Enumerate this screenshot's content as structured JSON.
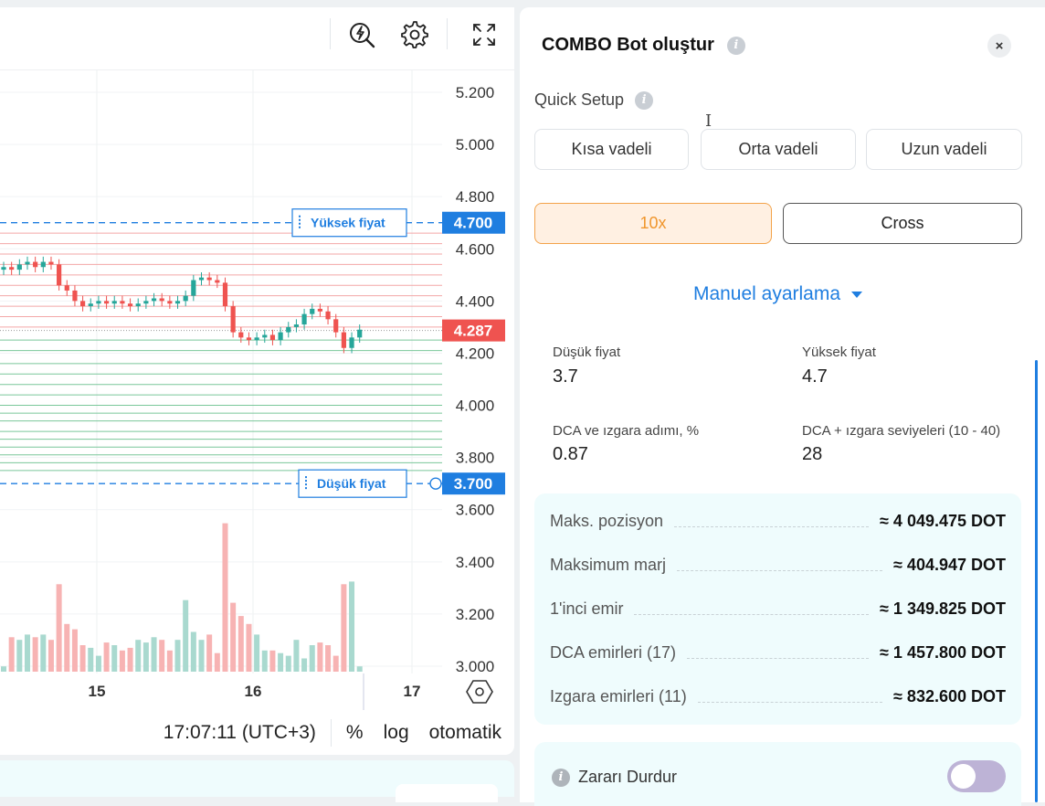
{
  "chart": {
    "price_axis": [
      "5.200",
      "5.000",
      "4.800",
      "4.600",
      "4.400",
      "4.200",
      "4.000",
      "3.800",
      "3.600",
      "3.400",
      "3.200",
      "3.000"
    ],
    "high_line": {
      "label": "Yüksek fiyat",
      "price_tag": "4.700"
    },
    "low_line": {
      "label": "Düşük fiyat",
      "price_tag": "3.700"
    },
    "current_price": "4.287",
    "time_axis": [
      "15",
      "16",
      "17"
    ],
    "footer": {
      "time": "17:07:11 (UTC+3)",
      "percent": "%",
      "log": "log",
      "auto": "otomatik"
    },
    "colors": {
      "up": "#26a69a",
      "down": "#ef5350",
      "grid_up": "#f3a7a7",
      "grid_down": "#7ac79a",
      "accent": "#1f7ee0"
    },
    "toolbar_icons": [
      "flash-search-icon",
      "gear-icon",
      "fullscreen-icon"
    ]
  },
  "chart_data": {
    "type": "candlestick",
    "y_range": [
      3.0,
      5.25
    ],
    "y_axis_ticks": [
      5.2,
      5.0,
      4.8,
      4.6,
      4.4,
      4.2,
      4.0,
      3.8,
      3.6,
      3.4,
      3.2,
      3.0
    ],
    "x_axis_ticks": [
      "15",
      "16",
      "17"
    ],
    "high_price": 4.7,
    "low_price": 3.7,
    "current_price": 4.287,
    "sell_grid_levels": [
      4.66,
      4.62,
      4.58,
      4.54,
      4.5,
      4.46,
      4.42,
      4.38,
      4.34,
      4.3
    ],
    "buy_grid_levels": [
      4.25,
      4.21,
      4.16,
      4.12,
      4.08,
      4.04,
      4.0,
      3.97,
      3.94,
      3.9,
      3.87,
      3.84,
      3.81,
      3.78,
      3.75
    ],
    "closes": [
      4.53,
      4.52,
      4.54,
      4.55,
      4.53,
      4.55,
      4.54,
      4.46,
      4.44,
      4.4,
      4.38,
      4.39,
      4.4,
      4.39,
      4.4,
      4.39,
      4.38,
      4.39,
      4.4,
      4.41,
      4.4,
      4.39,
      4.4,
      4.42,
      4.48,
      4.49,
      4.48,
      4.47,
      4.38,
      4.28,
      4.26,
      4.25,
      4.26,
      4.27,
      4.25,
      4.28,
      4.3,
      4.31,
      4.35,
      4.37,
      4.36,
      4.33,
      4.28,
      4.22,
      4.26,
      4.29
    ],
    "volumes": [
      0.02,
      0.13,
      0.12,
      0.14,
      0.13,
      0.14,
      0.12,
      0.33,
      0.18,
      0.16,
      0.1,
      0.09,
      0.06,
      0.11,
      0.1,
      0.08,
      0.09,
      0.12,
      0.11,
      0.13,
      0.12,
      0.08,
      0.12,
      0.27,
      0.15,
      0.12,
      0.14,
      0.07,
      0.56,
      0.26,
      0.21,
      0.18,
      0.14,
      0.08,
      0.08,
      0.07,
      0.06,
      0.12,
      0.05,
      0.1,
      0.11,
      0.1,
      0.06,
      0.33,
      0.34,
      0.02
    ]
  },
  "panel": {
    "title": "COMBO Bot oluştur",
    "close_label": "×",
    "quick_setup": {
      "label": "Quick Setup",
      "options": [
        "Kısa vadeli",
        "Orta vadeli",
        "Uzun vadeli"
      ]
    },
    "leverage": "10x",
    "margin_mode": "Cross",
    "manual_label": "Manuel ayarlama",
    "fields": {
      "low_price_label": "Düşük fiyat",
      "low_price_value": "3.7",
      "high_price_label": "Yüksek fiyat",
      "high_price_value": "4.7",
      "step_label": "DCA ve ızgara adımı, %",
      "step_value": "0.87",
      "levels_label": "DCA + ızgara seviyeleri (10 - 40)",
      "levels_value": "28"
    },
    "summary": [
      {
        "label": "Maks. pozisyon",
        "value": "≈ 4 049.475 DOT"
      },
      {
        "label": "Maksimum marj",
        "value": "≈ 404.947 DOT"
      },
      {
        "label": "1'inci emir",
        "value": "≈ 1 349.825 DOT"
      },
      {
        "label": "DCA emirleri (17)",
        "value": "≈ 1 457.800 DOT"
      },
      {
        "label": "Izgara emirleri (11)",
        "value": "≈ 832.600 DOT"
      }
    ],
    "stop_loss": {
      "label": "Zararı Durdur",
      "enabled": false
    },
    "toggle_color": "#bdb3d6"
  }
}
